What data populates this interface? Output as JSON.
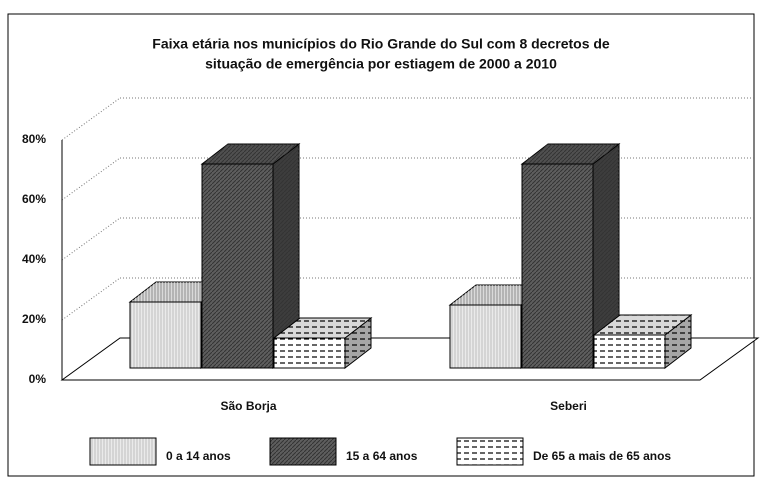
{
  "chart_data": {
    "type": "bar3d",
    "title": [
      "Faixa etária nos municípios do Rio Grande do Sul com 8 decretos de",
      "situação de emergência por estiagem de 2000 a 2010"
    ],
    "categories": [
      "São Borja",
      "Seberi"
    ],
    "series": [
      {
        "name": "0 a 14 anos",
        "color": "#d4d4d4",
        "values": [
          22,
          21
        ]
      },
      {
        "name": "15 a 64 anos",
        "color": "#5e5e5e",
        "values": [
          68,
          68
        ]
      },
      {
        "name": "De 65 a mais de 65 anos",
        "color": "#ffffff",
        "values": [
          10,
          11
        ]
      }
    ],
    "ylim": [
      0,
      80
    ],
    "yticks": [
      {
        "value": 0,
        "label": "0%"
      },
      {
        "value": 20,
        "label": "20%"
      },
      {
        "value": 40,
        "label": "40%"
      },
      {
        "value": 60,
        "label": "60%"
      },
      {
        "value": 80,
        "label": "80%"
      }
    ],
    "grid": true,
    "legend": "bottom"
  }
}
